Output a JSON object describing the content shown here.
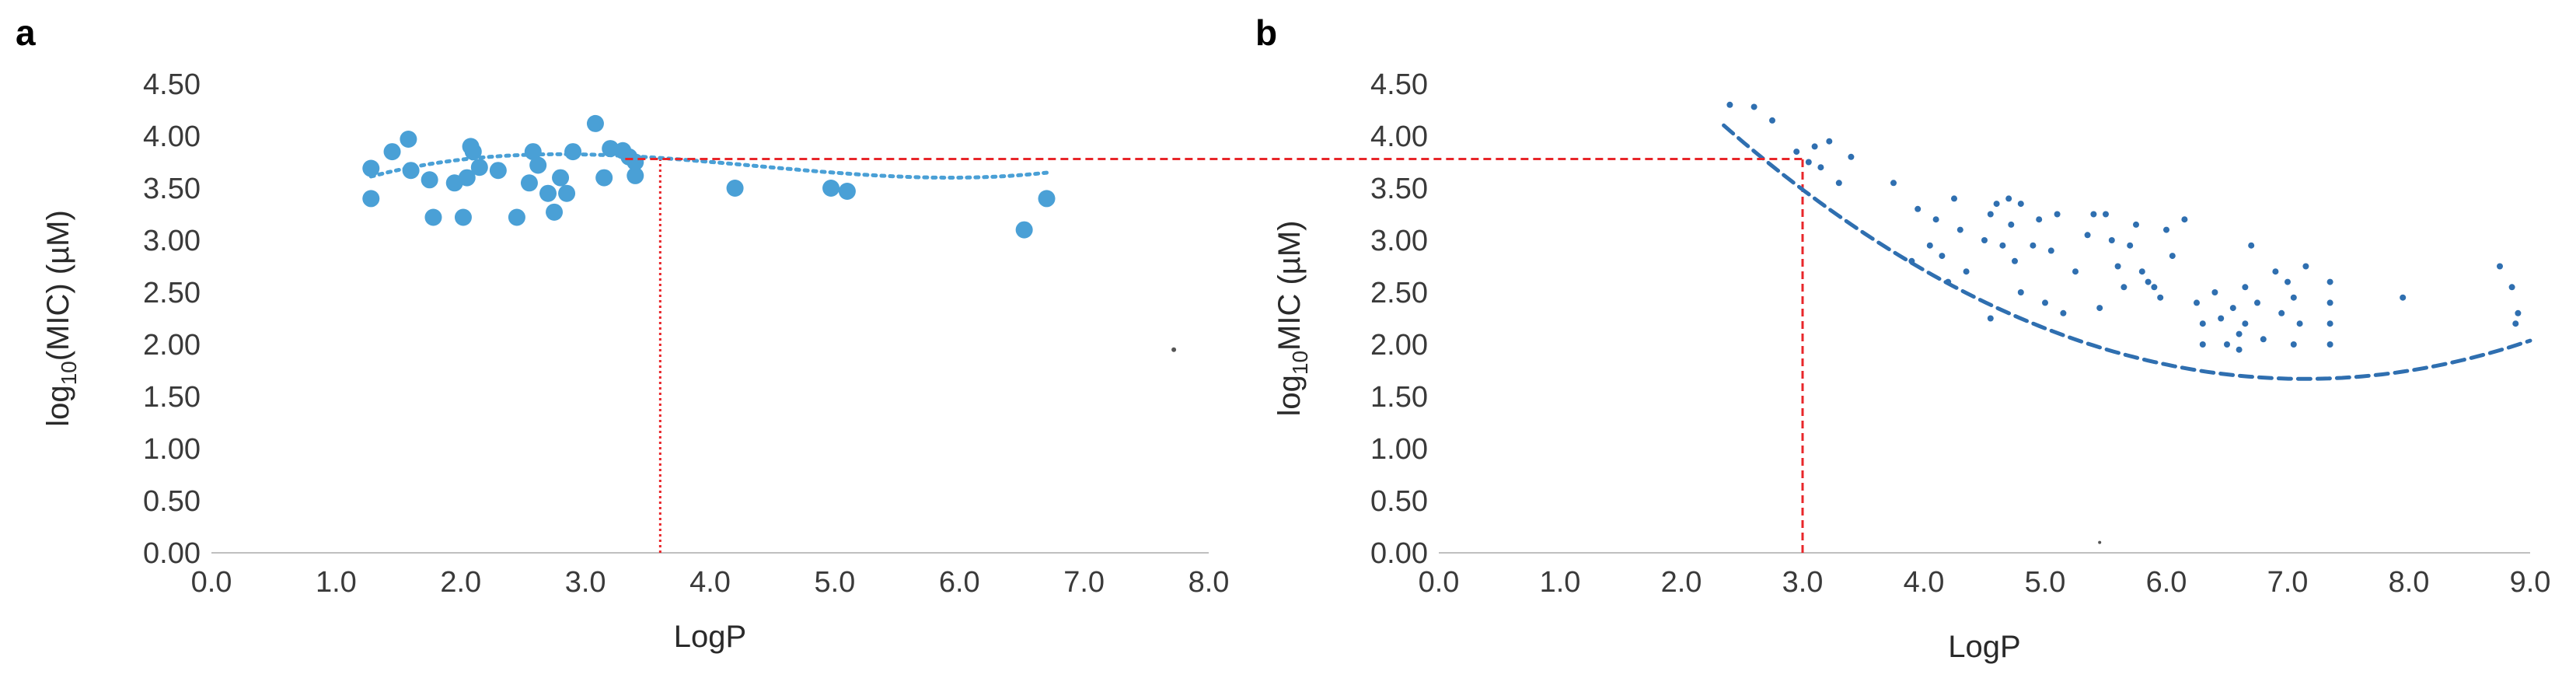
{
  "chart_data": [
    {
      "panel_label": "a",
      "type": "scatter",
      "xlabel": "LogP",
      "ylabel_main": "log",
      "ylabel_sub": "10",
      "ylabel_rest": "(MIC) (µM)",
      "xlim": [
        0,
        8
      ],
      "ylim": [
        0,
        4.5
      ],
      "xticks": [
        "0.0",
        "1.0",
        "2.0",
        "3.0",
        "4.0",
        "5.0",
        "6.0",
        "7.0",
        "8.0"
      ],
      "yticks": [
        "0.00",
        "0.50",
        "1.00",
        "1.50",
        "2.00",
        "2.50",
        "3.00",
        "3.50",
        "4.00",
        "4.50"
      ],
      "marker_color": "#4aa0d6",
      "trend_color": "#4aa0d6",
      "points": [
        {
          "x": 1.28,
          "y": 3.69
        },
        {
          "x": 1.28,
          "y": 3.4
        },
        {
          "x": 1.45,
          "y": 3.85
        },
        {
          "x": 1.58,
          "y": 3.97
        },
        {
          "x": 1.6,
          "y": 3.67
        },
        {
          "x": 1.75,
          "y": 3.58
        },
        {
          "x": 1.78,
          "y": 3.22
        },
        {
          "x": 1.95,
          "y": 3.55
        },
        {
          "x": 2.02,
          "y": 3.22
        },
        {
          "x": 2.05,
          "y": 3.6
        },
        {
          "x": 2.08,
          "y": 3.9
        },
        {
          "x": 2.1,
          "y": 3.85
        },
        {
          "x": 2.15,
          "y": 3.7
        },
        {
          "x": 2.3,
          "y": 3.67
        },
        {
          "x": 2.45,
          "y": 3.22
        },
        {
          "x": 2.55,
          "y": 3.55
        },
        {
          "x": 2.58,
          "y": 3.85
        },
        {
          "x": 2.62,
          "y": 3.72
        },
        {
          "x": 2.7,
          "y": 3.45
        },
        {
          "x": 2.75,
          "y": 3.27
        },
        {
          "x": 2.8,
          "y": 3.6
        },
        {
          "x": 2.85,
          "y": 3.45
        },
        {
          "x": 2.9,
          "y": 3.85
        },
        {
          "x": 3.08,
          "y": 4.12
        },
        {
          "x": 3.15,
          "y": 3.6
        },
        {
          "x": 3.2,
          "y": 3.88
        },
        {
          "x": 3.3,
          "y": 3.86
        },
        {
          "x": 3.35,
          "y": 3.8
        },
        {
          "x": 3.4,
          "y": 3.75
        },
        {
          "x": 3.4,
          "y": 3.62
        },
        {
          "x": 4.2,
          "y": 3.5
        },
        {
          "x": 4.97,
          "y": 3.5
        },
        {
          "x": 5.1,
          "y": 3.47
        },
        {
          "x": 6.52,
          "y": 3.1
        },
        {
          "x": 6.7,
          "y": 3.4
        }
      ],
      "trend_poly": [
        2.953,
        0.7386,
        -0.1939,
        0.0148
      ],
      "trend_range": [
        1.28,
        6.7
      ],
      "guide": {
        "x": 3.6,
        "y": 3.78,
        "color": "#e8262a"
      },
      "stray_point": {
        "x": 7.72,
        "y": 1.95
      }
    },
    {
      "panel_label": "b",
      "type": "scatter",
      "xlabel": "LogP",
      "ylabel_main": "log",
      "ylabel_sub": "10",
      "ylabel_rest": "MIC (µM)",
      "xlim": [
        0,
        9
      ],
      "ylim": [
        0,
        4.5
      ],
      "xticks": [
        "0.0",
        "1.0",
        "2.0",
        "3.0",
        "4.0",
        "5.0",
        "6.0",
        "7.0",
        "8.0",
        "9.0"
      ],
      "yticks": [
        "0.00",
        "0.50",
        "1.00",
        "1.50",
        "2.00",
        "2.50",
        "3.00",
        "3.50",
        "4.00",
        "4.50"
      ],
      "marker_color": "#2f6fb0",
      "trend_color": "#2f6fb0",
      "points": [
        {
          "x": 2.4,
          "y": 4.3
        },
        {
          "x": 2.6,
          "y": 4.28
        },
        {
          "x": 2.75,
          "y": 4.15
        },
        {
          "x": 2.95,
          "y": 3.85
        },
        {
          "x": 3.05,
          "y": 3.75
        },
        {
          "x": 3.1,
          "y": 3.9
        },
        {
          "x": 3.15,
          "y": 3.7
        },
        {
          "x": 3.22,
          "y": 3.95
        },
        {
          "x": 3.3,
          "y": 3.55
        },
        {
          "x": 3.4,
          "y": 3.8
        },
        {
          "x": 3.75,
          "y": 3.55
        },
        {
          "x": 3.9,
          "y": 2.8
        },
        {
          "x": 3.95,
          "y": 3.3
        },
        {
          "x": 4.05,
          "y": 2.95
        },
        {
          "x": 4.1,
          "y": 3.2
        },
        {
          "x": 4.15,
          "y": 2.85
        },
        {
          "x": 4.2,
          "y": 2.6
        },
        {
          "x": 4.25,
          "y": 3.4
        },
        {
          "x": 4.3,
          "y": 3.1
        },
        {
          "x": 4.35,
          "y": 2.7
        },
        {
          "x": 4.5,
          "y": 3.0
        },
        {
          "x": 4.55,
          "y": 3.25
        },
        {
          "x": 4.55,
          "y": 2.25
        },
        {
          "x": 4.6,
          "y": 3.35
        },
        {
          "x": 4.65,
          "y": 2.95
        },
        {
          "x": 4.7,
          "y": 3.4
        },
        {
          "x": 4.72,
          "y": 3.15
        },
        {
          "x": 4.75,
          "y": 2.8
        },
        {
          "x": 4.8,
          "y": 3.35
        },
        {
          "x": 4.8,
          "y": 2.5
        },
        {
          "x": 4.9,
          "y": 2.95
        },
        {
          "x": 4.95,
          "y": 3.2
        },
        {
          "x": 5.0,
          "y": 2.4
        },
        {
          "x": 5.05,
          "y": 2.9
        },
        {
          "x": 5.1,
          "y": 3.25
        },
        {
          "x": 5.15,
          "y": 2.3
        },
        {
          "x": 5.25,
          "y": 2.7
        },
        {
          "x": 5.35,
          "y": 3.05
        },
        {
          "x": 5.4,
          "y": 3.25
        },
        {
          "x": 5.45,
          "y": 2.35
        },
        {
          "x": 5.5,
          "y": 3.25
        },
        {
          "x": 5.55,
          "y": 3.0
        },
        {
          "x": 5.6,
          "y": 2.75
        },
        {
          "x": 5.65,
          "y": 2.55
        },
        {
          "x": 5.7,
          "y": 2.95
        },
        {
          "x": 5.75,
          "y": 3.15
        },
        {
          "x": 5.8,
          "y": 2.7
        },
        {
          "x": 5.85,
          "y": 2.6
        },
        {
          "x": 5.9,
          "y": 2.55
        },
        {
          "x": 5.95,
          "y": 2.45
        },
        {
          "x": 6.0,
          "y": 3.1
        },
        {
          "x": 6.05,
          "y": 2.85
        },
        {
          "x": 6.15,
          "y": 3.2
        },
        {
          "x": 6.25,
          "y": 2.4
        },
        {
          "x": 6.3,
          "y": 2.2
        },
        {
          "x": 6.3,
          "y": 2.0
        },
        {
          "x": 6.4,
          "y": 2.5
        },
        {
          "x": 6.45,
          "y": 2.25
        },
        {
          "x": 6.5,
          "y": 2.0
        },
        {
          "x": 6.55,
          "y": 2.35
        },
        {
          "x": 6.6,
          "y": 2.1
        },
        {
          "x": 6.6,
          "y": 1.95
        },
        {
          "x": 6.65,
          "y": 2.55
        },
        {
          "x": 6.65,
          "y": 2.2
        },
        {
          "x": 6.7,
          "y": 2.95
        },
        {
          "x": 6.75,
          "y": 2.4
        },
        {
          "x": 6.8,
          "y": 2.05
        },
        {
          "x": 6.9,
          "y": 2.7
        },
        {
          "x": 6.95,
          "y": 2.3
        },
        {
          "x": 7.0,
          "y": 2.6
        },
        {
          "x": 7.05,
          "y": 2.0
        },
        {
          "x": 7.05,
          "y": 2.45
        },
        {
          "x": 7.1,
          "y": 2.2
        },
        {
          "x": 7.15,
          "y": 2.75
        },
        {
          "x": 7.35,
          "y": 2.6
        },
        {
          "x": 7.35,
          "y": 2.0
        },
        {
          "x": 7.35,
          "y": 2.2
        },
        {
          "x": 7.35,
          "y": 2.4
        },
        {
          "x": 7.95,
          "y": 2.45
        },
        {
          "x": 8.75,
          "y": 2.75
        },
        {
          "x": 8.85,
          "y": 2.55
        },
        {
          "x": 8.88,
          "y": 2.2
        },
        {
          "x": 8.9,
          "y": 2.3
        }
      ],
      "trend_poly": [
        7.076,
        -1.5148,
        0.1061
      ],
      "trend_range": [
        2.35,
        9.0
      ],
      "guide": {
        "x": 3.0,
        "y": 3.78,
        "color": "#e8262a"
      },
      "stray_point": {
        "x": 5.45,
        "y": 0.1
      }
    }
  ]
}
